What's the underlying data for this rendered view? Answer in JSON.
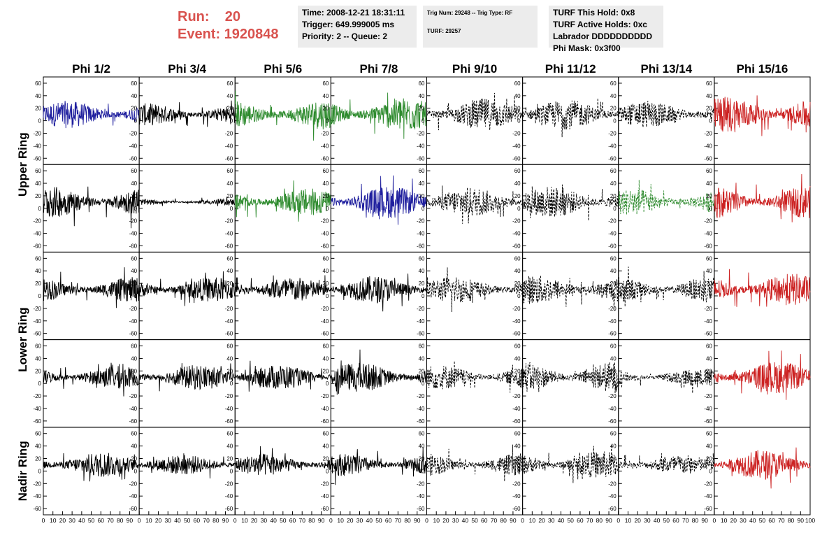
{
  "header": {
    "run_label": "Run:",
    "run_value": "20",
    "event_label": "Event:",
    "event_value": "1920848",
    "time": "Time: 2008-12-21 18:31:11",
    "trigger": "Trigger: 649.999005 ms",
    "priority": "Priority: 2 -- Queue: 2",
    "trig_num": "Trig Num: 29248 -- Trig Type: RF",
    "turf": "TURF: 29257",
    "turf_hold": "TURF This Hold: 0x8",
    "turf_active": "TURF Active Holds: 0xc",
    "labrador": "Labrador DDDDDDDDDD",
    "phi_mask": "Phi Mask: 0x3f00"
  },
  "colors": {
    "title_red": "#d9534f",
    "black": "#000000",
    "blue": "#1f1f9e",
    "green": "#2e8b2e",
    "red": "#cc2222",
    "box_bg": "#ececec"
  },
  "chart_data": {
    "type": "line",
    "columns": [
      "Phi 1/2",
      "Phi 3/4",
      "Phi 5/6",
      "Phi 7/8",
      "Phi 9/10",
      "Phi 11/12",
      "Phi 13/14",
      "Phi 15/16"
    ],
    "rows": [
      "Upper Ring",
      "Upper Ring",
      "Lower Ring",
      "Lower Ring",
      "Nadir Ring"
    ],
    "row_labels": [
      "Upper Ring",
      "Lower Ring",
      "Nadir Ring"
    ],
    "xlim": [
      0,
      100
    ],
    "ylim": [
      -70,
      70
    ],
    "x_ticks": [
      "0",
      "10",
      "20",
      "30",
      "40",
      "50",
      "60",
      "70",
      "80",
      "90",
      "100"
    ],
    "y_ticks": [
      "60",
      "40",
      "20",
      "0",
      "-20",
      "-40",
      "-60"
    ],
    "panel_styles": [
      [
        "blue-solid",
        "black-solid",
        "green-solid",
        "green-solid",
        "black-dashed",
        "black-dashed",
        "black-dashed",
        "red-solid"
      ],
      [
        "black-solid",
        "black-solid",
        "green-solid",
        "blue-solid",
        "black-dashed",
        "black-dashed",
        "green-dashed",
        "red-solid"
      ],
      [
        "black-solid",
        "black-solid",
        "black-solid",
        "black-solid",
        "black-dashed",
        "black-dashed",
        "black-dashed",
        "red-solid"
      ],
      [
        "black-solid",
        "black-solid",
        "black-solid",
        "black-solid",
        "black-dashed",
        "black-dashed",
        "black-dashed",
        "red-solid"
      ],
      [
        "black-solid",
        "black-solid",
        "black-solid",
        "black-solid",
        "black-dashed",
        "black-dashed",
        "black-dashed",
        "red-solid"
      ]
    ],
    "panel_amplitudes": [
      [
        22,
        18,
        24,
        28,
        26,
        24,
        22,
        30
      ],
      [
        25,
        5,
        22,
        26,
        24,
        26,
        22,
        26
      ],
      [
        20,
        20,
        20,
        22,
        22,
        24,
        22,
        26
      ],
      [
        18,
        20,
        20,
        24,
        20,
        26,
        14,
        26
      ],
      [
        20,
        16,
        18,
        18,
        18,
        22,
        16,
        24
      ]
    ],
    "baseline": 10,
    "samples": 260
  }
}
